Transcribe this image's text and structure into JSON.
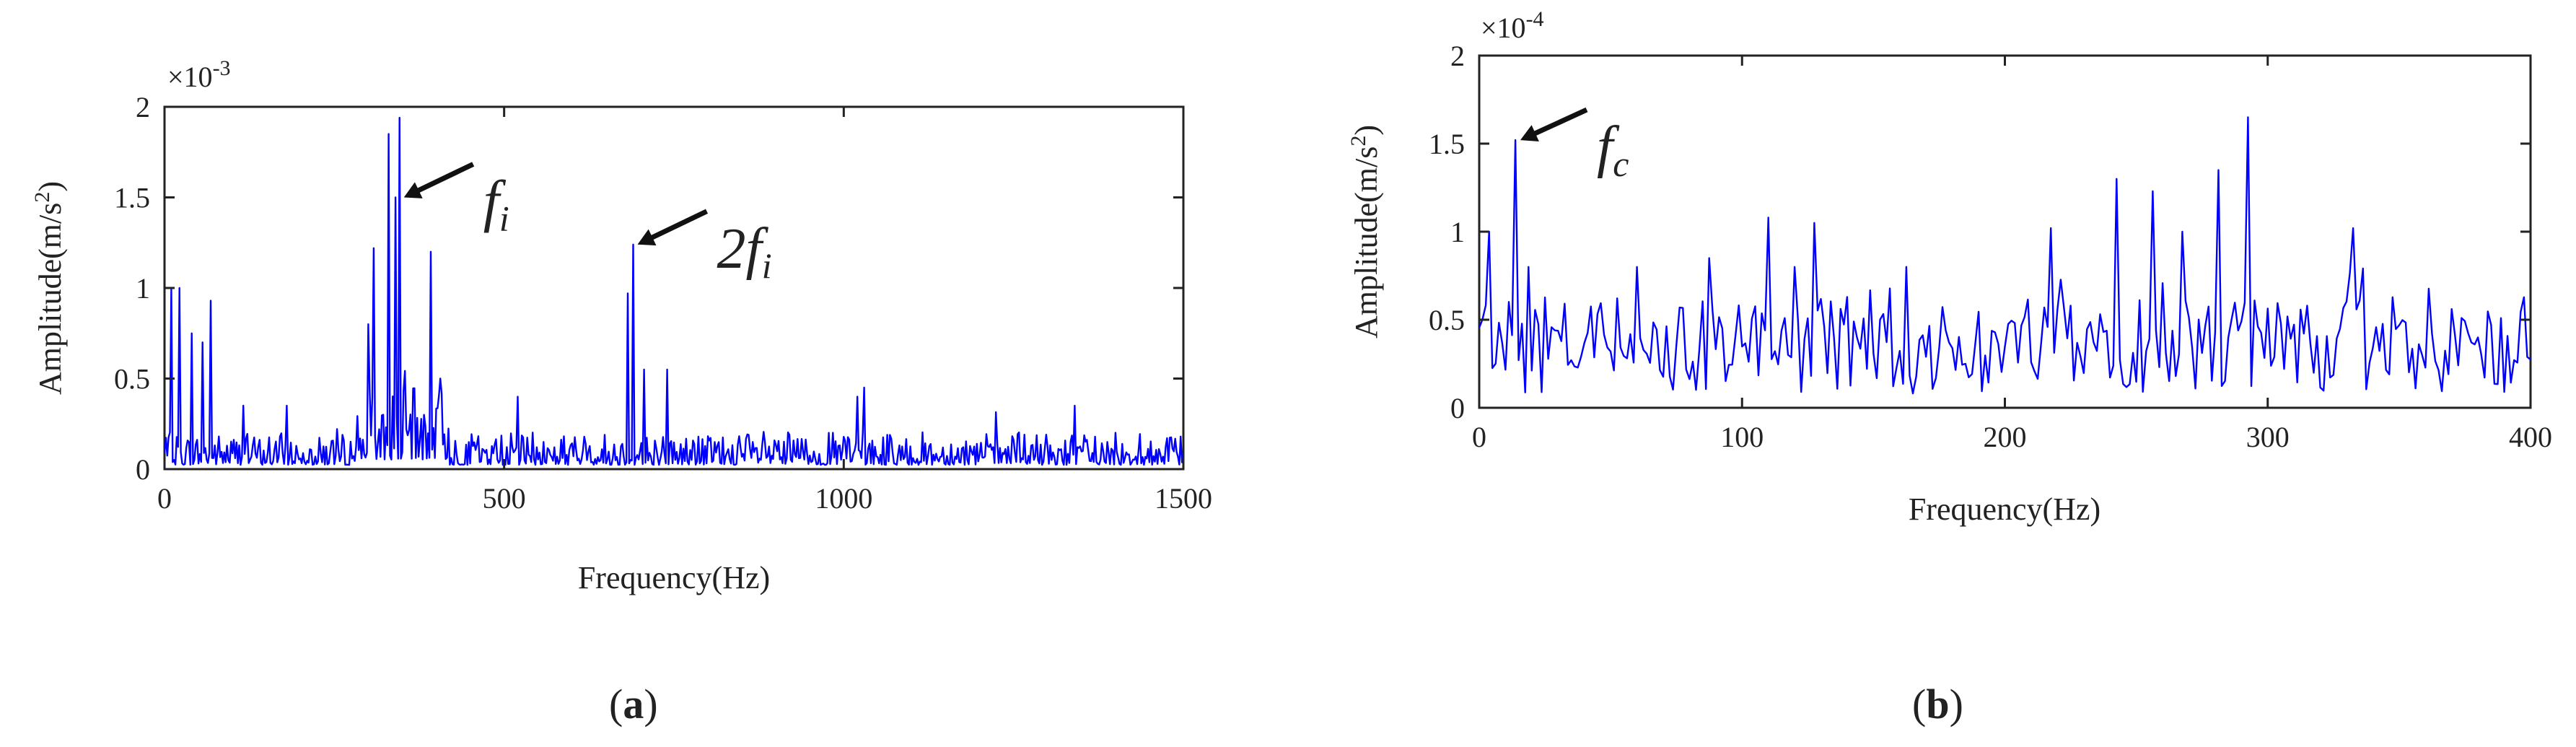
{
  "chart_data": [
    {
      "type": "line",
      "panel_label": "a",
      "xlabel": "Frequency(Hz)",
      "ylabel": "Amplitude(m/s",
      "ylabel_sup": "2",
      "ylabel_close": ")",
      "multiplier_base": "×10",
      "multiplier_exp": "-3",
      "xlim": [
        0,
        1500
      ],
      "ylim": [
        0,
        2
      ],
      "xticks": [
        0,
        500,
        1000,
        1500
      ],
      "yticks": [
        0,
        0.5,
        1,
        1.5,
        2
      ],
      "grid": false,
      "color": "#0000ff",
      "peaks": [
        [
          10,
          1.0
        ],
        [
          22,
          1.0
        ],
        [
          40,
          0.75
        ],
        [
          55,
          0.7
        ],
        [
          68,
          0.93
        ],
        [
          115,
          0.35
        ],
        [
          180,
          0.35
        ],
        [
          300,
          0.8
        ],
        [
          308,
          1.22
        ],
        [
          330,
          1.85
        ],
        [
          340,
          1.5
        ],
        [
          346,
          1.94
        ],
        [
          382,
          0.3
        ],
        [
          392,
          1.2
        ],
        [
          405,
          0.5
        ],
        [
          520,
          0.4
        ],
        [
          682,
          0.97
        ],
        [
          690,
          1.24
        ],
        [
          705,
          0.55
        ],
        [
          740,
          0.55
        ],
        [
          1020,
          0.4
        ],
        [
          1030,
          0.45
        ],
        [
          1340,
          0.35
        ]
      ],
      "annotations": [
        {
          "text": "f",
          "sub": "i",
          "points_to": [
            346,
            1.5
          ]
        },
        {
          "text": "2f",
          "sub": "i",
          "points_to": [
            690,
            1.24
          ]
        }
      ]
    },
    {
      "type": "line",
      "panel_label": "b",
      "xlabel": "Frequency(Hz)",
      "ylabel": "Amplitude(m/s",
      "ylabel_sup": "2",
      "ylabel_close": ")",
      "multiplier_base": "×10",
      "multiplier_exp": "-4",
      "xlim": [
        0,
        400
      ],
      "ylim": [
        0,
        2
      ],
      "xticks": [
        0,
        100,
        200,
        300,
        400
      ],
      "yticks": [
        0,
        0.5,
        1,
        1.5,
        2
      ],
      "grid": false,
      "color": "#0000ff",
      "peaks": [
        [
          4,
          1.0
        ],
        [
          14,
          1.52
        ],
        [
          19,
          0.8
        ],
        [
          60,
          0.8
        ],
        [
          88,
          0.85
        ],
        [
          110,
          1.08
        ],
        [
          120,
          0.8
        ],
        [
          127,
          1.05
        ],
        [
          163,
          0.8
        ],
        [
          218,
          1.02
        ],
        [
          243,
          1.3
        ],
        [
          256,
          1.23
        ],
        [
          268,
          1.0
        ],
        [
          281,
          1.35
        ],
        [
          293,
          1.65
        ],
        [
          332,
          1.02
        ]
      ],
      "annotations": [
        {
          "text": "f",
          "sub": "c",
          "points_to": [
            14,
            1.52
          ]
        }
      ]
    }
  ]
}
